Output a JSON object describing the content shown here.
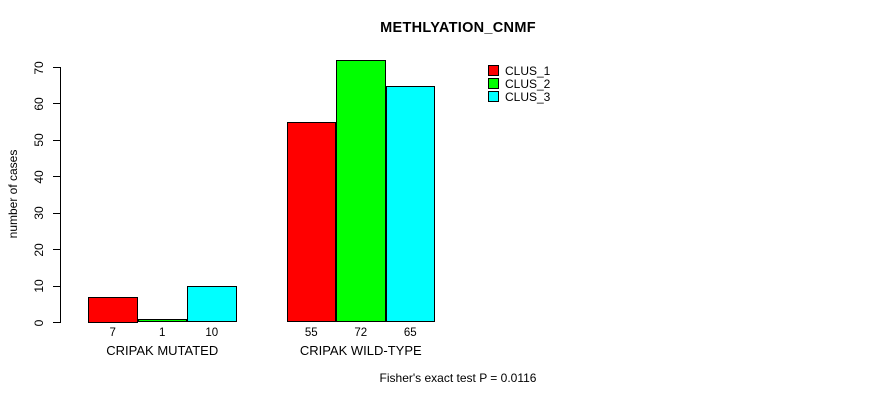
{
  "chart_data": {
    "type": "bar",
    "title": "METHLYATION_CNMF",
    "ylabel": "number of cases",
    "xlabel": "",
    "ylim": [
      0,
      70
    ],
    "yticks": [
      0,
      10,
      20,
      30,
      40,
      50,
      60,
      70
    ],
    "grid": false,
    "categories": [
      "CRIPAK MUTATED",
      "CRIPAK WILD-TYPE"
    ],
    "series": [
      {
        "name": "CLUS_1",
        "color": "#ff0000",
        "values": [
          7,
          55
        ]
      },
      {
        "name": "CLUS_2",
        "color": "#00ff00",
        "values": [
          1,
          72
        ]
      },
      {
        "name": "CLUS_3",
        "color": "#00ffff",
        "values": [
          10,
          65
        ]
      }
    ],
    "bar_value_labels": [
      [
        7,
        1,
        10
      ],
      [
        55,
        72,
        65
      ]
    ],
    "legend_position": "top-right",
    "annotation": "Fisher's exact test P = 0.0116"
  },
  "colors": {
    "background": "#ffffff",
    "axis": "#000000",
    "text": "#000000"
  }
}
